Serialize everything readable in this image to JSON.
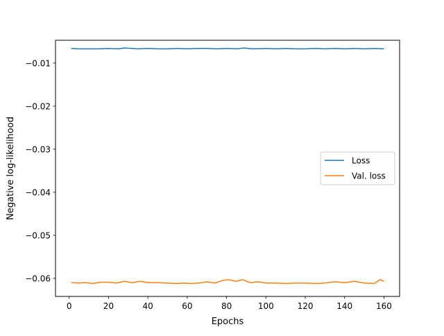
{
  "chart_data": {
    "type": "line",
    "title": "",
    "xlabel": "Epochs",
    "ylabel": "Negative log-likelihood",
    "xlim": [
      -6.95,
      167.95
    ],
    "ylim": [
      -0.0642,
      -0.0047
    ],
    "xticks": [
      0,
      20,
      40,
      60,
      80,
      100,
      120,
      140,
      160
    ],
    "yticks": [
      -0.06,
      -0.05,
      -0.04,
      -0.03,
      -0.02,
      -0.01
    ],
    "ytick_labels": [
      "−0.06",
      "−0.05",
      "−0.04",
      "−0.03",
      "−0.02",
      "−0.01"
    ],
    "grid": false,
    "legend_position": "center-right",
    "series": [
      {
        "name": "Loss",
        "color": "#1f77b4",
        "x": [
          1,
          5,
          10,
          15,
          20,
          25,
          28,
          32,
          35,
          40,
          45,
          50,
          55,
          60,
          65,
          70,
          75,
          80,
          85,
          89,
          93,
          100,
          105,
          110,
          115,
          120,
          125,
          130,
          135,
          140,
          145,
          150,
          155,
          160
        ],
        "y": [
          -0.0066,
          -0.0067,
          -0.0067,
          -0.0067,
          -0.0066,
          -0.0067,
          -0.0065,
          -0.0066,
          -0.0067,
          -0.0066,
          -0.0067,
          -0.0067,
          -0.0066,
          -0.0067,
          -0.0066,
          -0.0066,
          -0.0067,
          -0.0066,
          -0.0067,
          -0.0065,
          -0.0067,
          -0.0066,
          -0.0067,
          -0.0066,
          -0.0067,
          -0.0067,
          -0.0066,
          -0.0067,
          -0.0066,
          -0.0067,
          -0.0066,
          -0.0067,
          -0.0066,
          -0.0067
        ]
      },
      {
        "name": "Val. loss",
        "color": "#ff7f0e",
        "x": [
          1,
          5,
          8,
          12,
          16,
          20,
          24,
          28,
          32,
          36,
          40,
          45,
          50,
          55,
          58,
          62,
          66,
          70,
          74,
          78,
          81,
          85,
          88,
          92,
          96,
          100,
          105,
          110,
          115,
          120,
          125,
          130,
          135,
          140,
          145,
          150,
          155,
          158,
          160
        ],
        "y": [
          -0.061,
          -0.0611,
          -0.061,
          -0.0612,
          -0.0609,
          -0.0609,
          -0.0611,
          -0.0607,
          -0.061,
          -0.0607,
          -0.061,
          -0.061,
          -0.0611,
          -0.0612,
          -0.0611,
          -0.0612,
          -0.0611,
          -0.0608,
          -0.0611,
          -0.0605,
          -0.0603,
          -0.0607,
          -0.0603,
          -0.061,
          -0.0608,
          -0.0611,
          -0.0611,
          -0.0612,
          -0.0611,
          -0.0611,
          -0.0612,
          -0.0611,
          -0.0608,
          -0.061,
          -0.0607,
          -0.0611,
          -0.0612,
          -0.0603,
          -0.0607
        ]
      }
    ]
  }
}
